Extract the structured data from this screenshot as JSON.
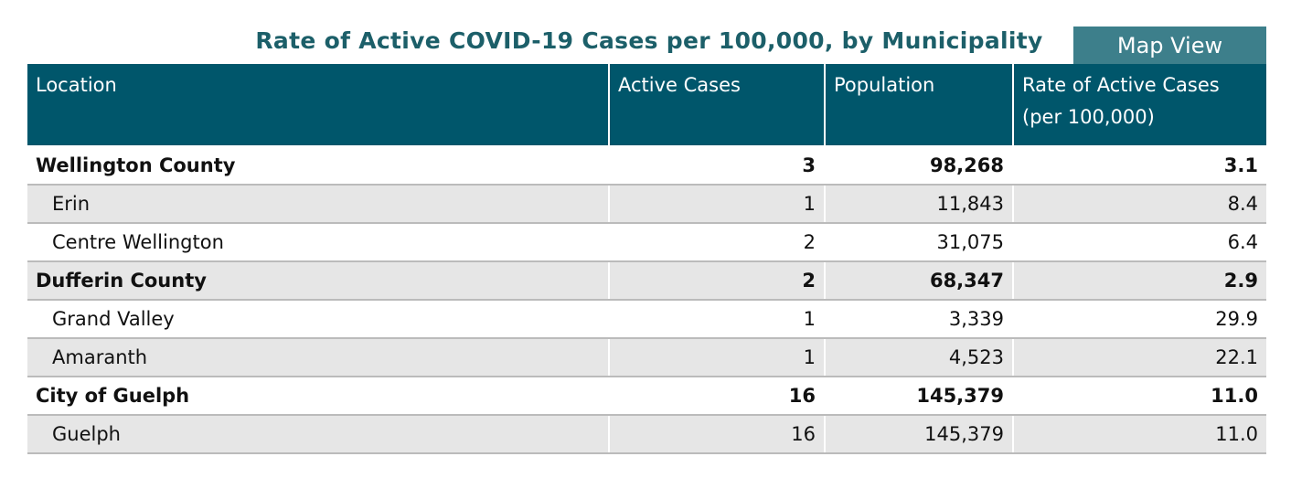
{
  "title": "Rate of Active COVID-19 Cases per 100,000, by Municipality",
  "button": "Map View",
  "table": {
    "header": [
      "Location",
      "Active Cases",
      "Population",
      "Rate of Active Cases (per 100,000)"
    ],
    "rows": [
      [
        "Wellington County",
        "3",
        "98,268",
        "3.1"
      ],
      [
        "Erin",
        "1",
        "11,843",
        "8.4"
      ],
      [
        "Centre Wellington",
        "2",
        "31,075",
        "6.4"
      ],
      [
        "Dufferin County",
        "2",
        "68,347",
        "2.9"
      ],
      [
        "Grand Valley",
        "1",
        "3,339",
        "29.9"
      ],
      [
        "Amaranth",
        "1",
        "4,523",
        "22.1"
      ],
      [
        "City of Guelph",
        "16",
        "145,379",
        "11.0"
      ],
      [
        "Guelph",
        "16",
        "145,379",
        "11.0"
      ]
    ]
  }
}
